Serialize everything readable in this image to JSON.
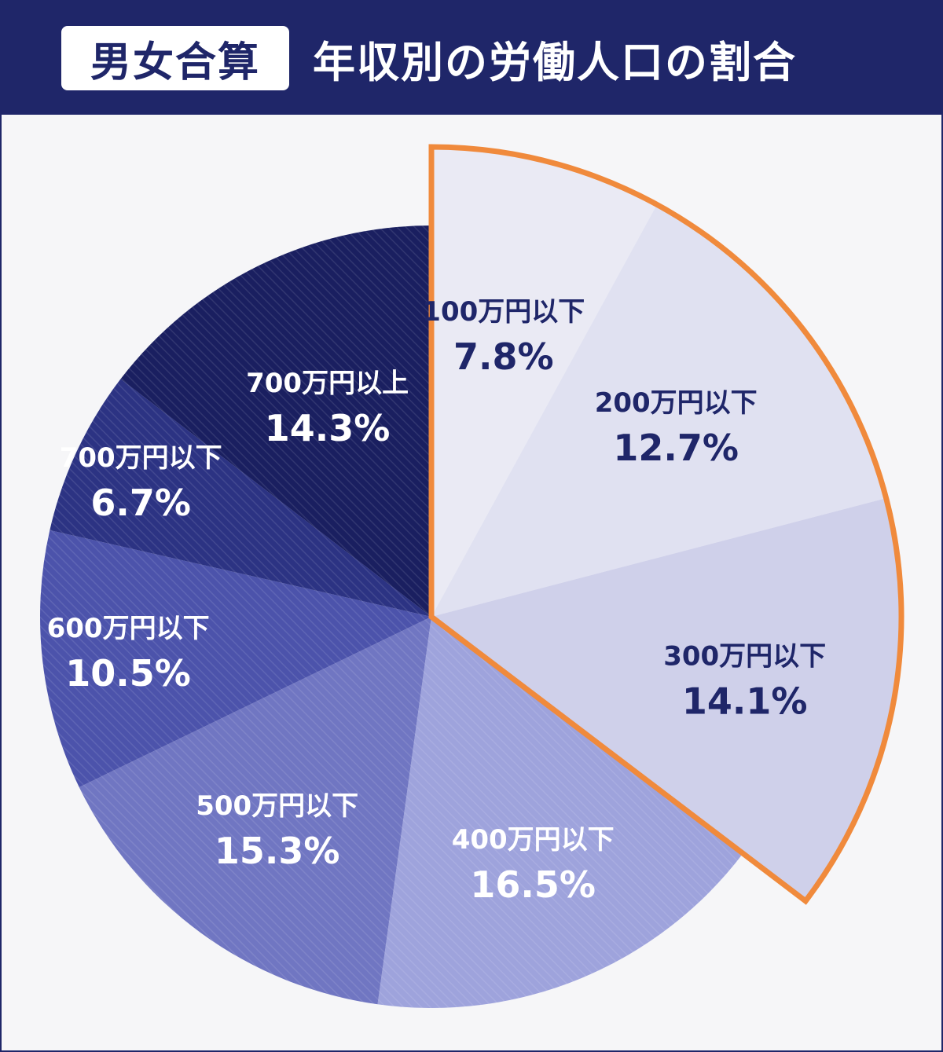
{
  "header": {
    "badge": "男女合算",
    "title": "年収別の労働人口の割合"
  },
  "colors": {
    "header_bg": "#1f2669",
    "highlight_outline": "#f08a3c",
    "slices": [
      "#eaeaf4",
      "#e0e1f1",
      "#cfd0ea",
      "#9ea3dc",
      "#7076c2",
      "#4c53ab",
      "#2c3383",
      "#1a1f60"
    ],
    "label_dark": "#1f2669",
    "label_light": "#ffffff"
  },
  "chart_data": {
    "type": "pie",
    "title": "年収別の労働人口の割合",
    "categories": [
      "100万円以下",
      "200万円以下",
      "300万円以下",
      "400万円以下",
      "500万円以下",
      "600万円以下",
      "700万円以下",
      "700万円以上"
    ],
    "values": [
      7.8,
      12.7,
      14.1,
      16.5,
      15.3,
      10.5,
      6.7,
      14.3
    ],
    "value_labels": [
      "7.8%",
      "12.7%",
      "14.1%",
      "16.5%",
      "15.3%",
      "10.5%",
      "6.7%",
      "14.3%"
    ],
    "start_angle": "12 o'clock, clockwise",
    "highlighted": [
      "100万円以下",
      "200万円以下",
      "300万円以下"
    ],
    "legend": "none (labels on slices)"
  }
}
